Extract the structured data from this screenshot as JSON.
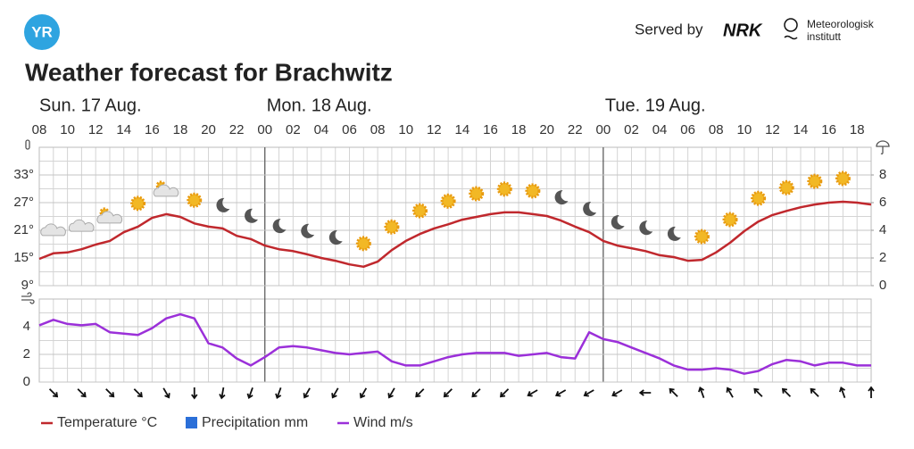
{
  "header": {
    "logo": "YR",
    "served_by": "Served by",
    "nrk": "NRK",
    "met": [
      "Meteorologisk",
      "institutt"
    ]
  },
  "chart_data": [
    {
      "type": "line",
      "title": "Weather forecast for Brachwitz",
      "days": [
        "Sun. 17 Aug.",
        "Mon. 18 Aug.",
        "Tue. 19 Aug."
      ],
      "categories": [
        "08",
        null,
        "10",
        null,
        "12",
        null,
        "14",
        null,
        "16",
        null,
        "18",
        null,
        "20",
        null,
        "22",
        null,
        "00",
        null,
        "02",
        null,
        "04",
        null,
        "06",
        null,
        "08",
        null,
        "10",
        null,
        "12",
        null,
        "14",
        null,
        "16",
        null,
        "18",
        null,
        "20",
        null,
        "22",
        null,
        "00",
        null,
        "02",
        null,
        "04",
        null,
        "06",
        null,
        "08",
        null,
        "10",
        null,
        "12",
        null,
        "14",
        null,
        "16",
        null,
        "18",
        null
      ],
      "ylim": [
        9,
        39
      ],
      "yticks": [
        {
          "value": 9,
          "label": "9°"
        },
        {
          "value": 15,
          "label": "15°"
        },
        {
          "value": 21,
          "label": "21°"
        },
        {
          "value": 27,
          "label": "27°"
        },
        {
          "value": 33,
          "label": "33°"
        }
      ],
      "y2lim": [
        0,
        10
      ],
      "y2ticks": [
        0,
        2,
        4,
        6,
        8
      ],
      "grid": true,
      "series": [
        {
          "name": "Temperature °C",
          "color": "#c0282d",
          "values": [
            14.8,
            16.0,
            16.2,
            16.9,
            17.9,
            18.7,
            20.6,
            21.8,
            23.7,
            24.5,
            23.9,
            22.5,
            21.8,
            21.4,
            19.8,
            19.1,
            17.7,
            16.9,
            16.5,
            15.8,
            15.0,
            14.4,
            13.6,
            13.1,
            14.2,
            16.7,
            18.7,
            20.2,
            21.4,
            22.3,
            23.3,
            23.9,
            24.5,
            24.9,
            24.9,
            24.5,
            24.1,
            23.1,
            21.8,
            20.6,
            18.7,
            17.7,
            17.1,
            16.5,
            15.6,
            15.2,
            14.4,
            14.6,
            16.2,
            18.3,
            20.8,
            22.9,
            24.3,
            25.2,
            26.0,
            26.6,
            27.0,
            27.2,
            27.0,
            26.6
          ]
        },
        {
          "name": "Precipitation mm",
          "color": "#2b6fd8",
          "axis": "y2",
          "values": [
            0,
            0,
            0,
            0,
            0,
            0,
            0,
            0,
            0,
            0,
            0,
            0,
            0,
            0,
            0,
            0,
            0,
            0,
            0,
            0,
            0,
            0,
            0,
            0,
            0,
            0,
            0,
            0,
            0,
            0,
            0,
            0,
            0,
            0,
            0,
            0,
            0,
            0,
            0,
            0,
            0,
            0,
            0,
            0,
            0,
            0,
            0,
            0,
            0,
            0,
            0,
            0,
            0,
            0,
            0,
            0,
            0,
            0,
            0,
            0
          ]
        }
      ]
    },
    {
      "type": "line",
      "ylim": [
        0,
        6
      ],
      "yticks": [
        0,
        2,
        4
      ],
      "grid": true,
      "series": [
        {
          "name": "Wind m/s",
          "color": "#9b30d9",
          "values": [
            4.1,
            4.5,
            4.2,
            4.1,
            4.2,
            3.6,
            3.5,
            3.4,
            3.9,
            4.6,
            4.9,
            4.6,
            2.8,
            2.5,
            1.7,
            1.2,
            1.8,
            2.5,
            2.6,
            2.5,
            2.3,
            2.1,
            2.0,
            2.1,
            2.2,
            1.5,
            1.2,
            1.2,
            1.5,
            1.8,
            2.0,
            2.1,
            2.1,
            2.1,
            1.9,
            2.0,
            2.1,
            1.8,
            1.7,
            3.6,
            3.1,
            2.9,
            2.5,
            2.1,
            1.7,
            1.2,
            0.9,
            0.9,
            1.0,
            0.9,
            0.6,
            0.8,
            1.3,
            1.6,
            1.5,
            1.2,
            1.4,
            1.4,
            1.2,
            1.2
          ]
        }
      ]
    }
  ]
}
